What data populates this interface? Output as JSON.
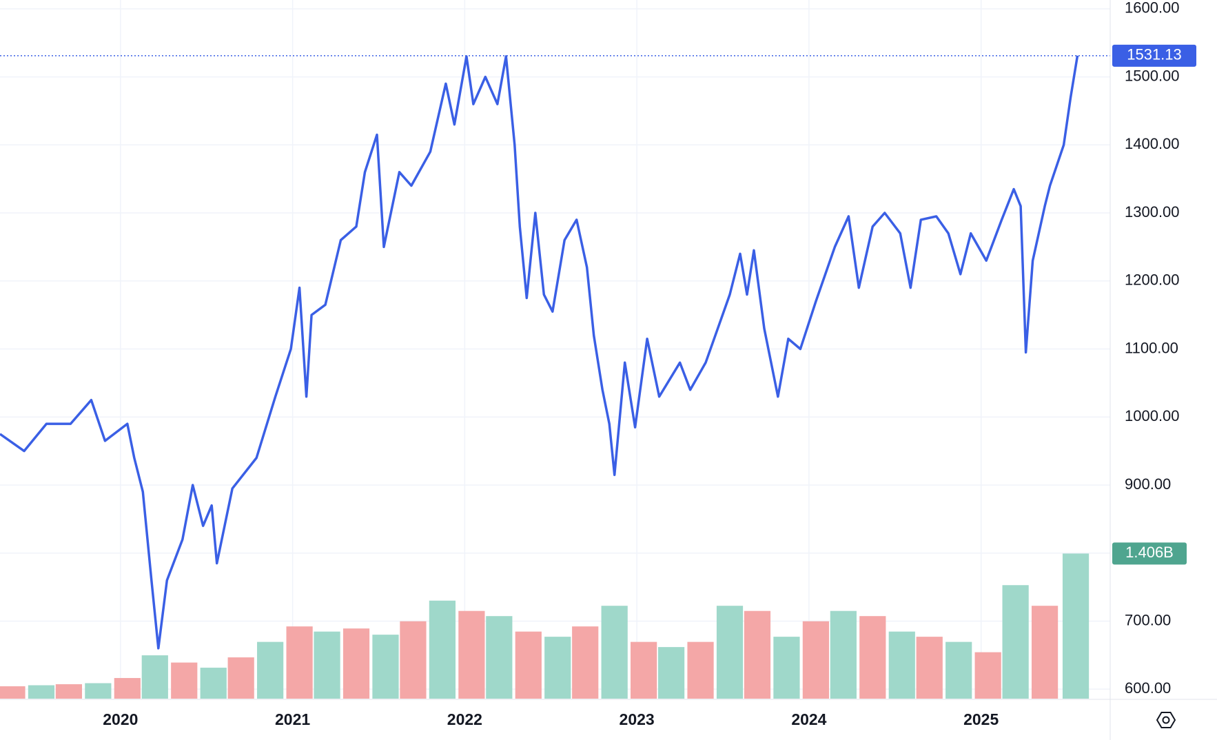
{
  "chart_data": {
    "type": "line",
    "xlim": [
      2019.3,
      2025.75
    ],
    "xticks": [
      2020,
      2021,
      2022,
      2023,
      2024,
      2025
    ],
    "ylim": [
      586,
      1613
    ],
    "yticks": [
      {
        "value": 600,
        "label": "600.00"
      },
      {
        "value": 700,
        "label": "700.00"
      },
      {
        "value": 800,
        "label": "800.00"
      },
      {
        "value": 900,
        "label": "900.00"
      },
      {
        "value": 1000,
        "label": "1000.00"
      },
      {
        "value": 1100,
        "label": "1100.00"
      },
      {
        "value": 1200,
        "label": "1200.00"
      },
      {
        "value": 1300,
        "label": "1300.00"
      },
      {
        "value": 1400,
        "label": "1400.00"
      },
      {
        "value": 1500,
        "label": "1500.00"
      },
      {
        "value": 1600,
        "label": "1600.00"
      }
    ],
    "y2lim": [
      0,
      6.77
    ],
    "grid": true,
    "series": [
      {
        "color": "#3a5fe5",
        "x": [
          2019.3,
          2019.44,
          2019.57,
          2019.71,
          2019.83,
          2019.91,
          2020.04,
          2020.08,
          2020.13,
          2020.18,
          2020.22,
          2020.27,
          2020.36,
          2020.42,
          2020.48,
          2020.53,
          2020.56,
          2020.65,
          2020.79,
          2020.9,
          2020.99,
          2021.04,
          2021.08,
          2021.11,
          2021.19,
          2021.28,
          2021.37,
          2021.42,
          2021.49,
          2021.53,
          2021.62,
          2021.69,
          2021.8,
          2021.89,
          2021.94,
          2022.01,
          2022.05,
          2022.12,
          2022.19,
          2022.24,
          2022.29,
          2022.32,
          2022.36,
          2022.41,
          2022.46,
          2022.51,
          2022.58,
          2022.65,
          2022.71,
          2022.75,
          2022.8,
          2022.84,
          2022.87,
          2022.93,
          2022.99,
          2023.06,
          2023.13,
          2023.25,
          2023.31,
          2023.4,
          2023.47,
          2023.54,
          2023.6,
          2023.64,
          2023.68,
          2023.74,
          2023.82,
          2023.88,
          2023.95,
          2024.04,
          2024.15,
          2024.23,
          2024.29,
          2024.37,
          2024.44,
          2024.53,
          2024.59,
          2024.65,
          2024.74,
          2024.81,
          2024.88,
          2024.94,
          2025.03,
          2025.12,
          2025.19,
          2025.23,
          2025.26,
          2025.3,
          2025.37,
          2025.4,
          2025.48,
          2025.52,
          2025.56
        ],
        "values": [
          975,
          950,
          990,
          990,
          1025,
          965,
          990,
          940,
          890,
          760,
          660,
          760,
          820,
          900,
          840,
          870,
          785,
          895,
          940,
          1030,
          1100,
          1190,
          1030,
          1150,
          1165,
          1260,
          1280,
          1360,
          1415,
          1250,
          1360,
          1340,
          1390,
          1490,
          1430,
          1530,
          1460,
          1500,
          1460,
          1530,
          1400,
          1280,
          1175,
          1300,
          1180,
          1155,
          1260,
          1290,
          1220,
          1120,
          1040,
          990,
          915,
          1080,
          985,
          1115,
          1030,
          1080,
          1040,
          1080,
          1130,
          1180,
          1240,
          1180,
          1245,
          1130,
          1030,
          1115,
          1100,
          1170,
          1250,
          1295,
          1190,
          1280,
          1300,
          1270,
          1190,
          1290,
          1295,
          1270,
          1210,
          1270,
          1230,
          1290,
          1335,
          1310,
          1095,
          1230,
          1310,
          1340,
          1400,
          1470,
          1531.13
        ]
      },
      {
        "type": "bar",
        "axis": "y2",
        "colors": [
          "#f4a7a7",
          "#9fd8ca"
        ],
        "last_label": "1.406B",
        "x": [
          2019.37,
          2019.54,
          2019.7,
          2019.87,
          2020.04,
          2020.2,
          2020.37,
          2020.54,
          2020.7,
          2020.87,
          2021.04,
          2021.2,
          2021.37,
          2021.54,
          2021.7,
          2021.87,
          2022.04,
          2022.2,
          2022.37,
          2022.54,
          2022.7,
          2022.87,
          2023.04,
          2023.2,
          2023.37,
          2023.54,
          2023.7,
          2023.87,
          2024.04,
          2024.2,
          2024.37,
          2024.54,
          2024.7,
          2024.87,
          2025.04,
          2025.2,
          2025.37,
          2025.55
        ],
        "values": [
          0.12,
          0.13,
          0.14,
          0.15,
          0.2,
          0.42,
          0.35,
          0.3,
          0.4,
          0.55,
          0.7,
          0.65,
          0.68,
          0.62,
          0.75,
          0.95,
          0.85,
          0.8,
          0.65,
          0.6,
          0.7,
          0.9,
          0.55,
          0.5,
          0.55,
          0.9,
          0.85,
          0.6,
          0.75,
          0.85,
          0.8,
          0.65,
          0.6,
          0.55,
          0.45,
          1.1,
          0.9,
          1.406
        ]
      }
    ]
  }
}
